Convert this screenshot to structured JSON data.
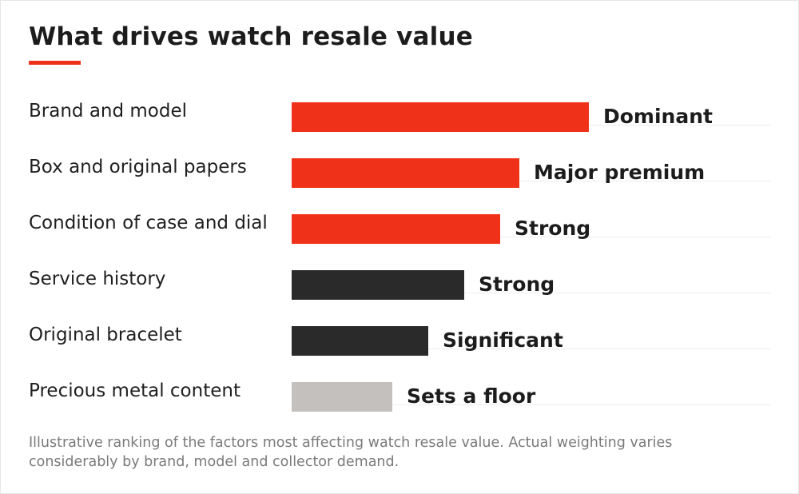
{
  "title": "What drives watch resale value",
  "note": "Illustrative ranking of the factors most affecting watch resale value. Actual weighting varies considerably by brand, model and collector demand.",
  "colors": {
    "accent": "#f0311a",
    "dark": "#2a2a2a",
    "light": "#c4c0bd"
  },
  "chart_data": {
    "type": "bar",
    "orientation": "horizontal",
    "title": "What drives watch resale value",
    "categories": [
      "Brand and model",
      "Box and original papers",
      "Condition of case and dial",
      "Service history",
      "Original bracelet",
      "Precious metal content"
    ],
    "values": [
      62,
      47.5,
      43.5,
      36,
      28.5,
      21
    ],
    "value_labels": [
      "Dominant",
      "Major premium",
      "Strong",
      "Strong",
      "Significant",
      "Sets a floor"
    ],
    "bar_colors": [
      "#f0311a",
      "#f0311a",
      "#f0311a",
      "#2a2a2a",
      "#2a2a2a",
      "#c4c0bd"
    ],
    "xlim": [
      0,
      100
    ],
    "grid": true,
    "legend": "none"
  }
}
